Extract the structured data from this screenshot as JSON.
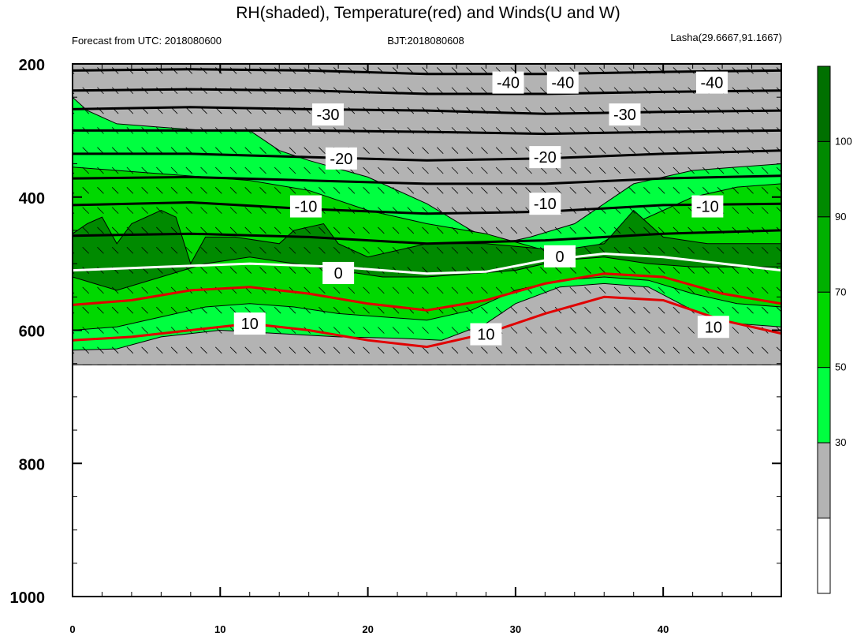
{
  "chart_data": {
    "type": "contour",
    "title": "RH(shaded), Temperature(red) and Winds(U and W)",
    "subtitle_left": "Forecast from UTC: 2018080600",
    "subtitle_center": "BJT:2018080608",
    "subtitle_right": "Lasha(29.6667,91.1667)",
    "xlim": [
      0,
      48
    ],
    "ylim": [
      200,
      1000
    ],
    "x_ticks": [
      "0",
      "10",
      "20",
      "30",
      "40"
    ],
    "y_ticks": [
      "200",
      "400",
      "600",
      "800",
      "1000"
    ],
    "colorbar": {
      "levels": [
        "30",
        "50",
        "70",
        "90",
        "100"
      ],
      "colors": [
        "#ffffff",
        "#b3b3b3",
        "#00ff40",
        "#00d800",
        "#00b000",
        "#008a00",
        "#007000"
      ]
    },
    "rh_bands": [
      {
        "range": "30-50",
        "color": "#b3b3b3",
        "top": [
          [
            0,
            200
          ],
          [
            2,
            200
          ],
          [
            4,
            200
          ],
          [
            8,
            200
          ],
          [
            12,
            200
          ],
          [
            16,
            200
          ],
          [
            20,
            200
          ],
          [
            24,
            200
          ],
          [
            28,
            200
          ],
          [
            32,
            200
          ],
          [
            36,
            200
          ],
          [
            40,
            200
          ],
          [
            44,
            200
          ],
          [
            48,
            200
          ]
        ],
        "bottom": [
          [
            0,
            652
          ],
          [
            4,
            652
          ],
          [
            8,
            652
          ],
          [
            12,
            652
          ],
          [
            16,
            652
          ],
          [
            20,
            652
          ],
          [
            24,
            652
          ],
          [
            28,
            652
          ],
          [
            32,
            652
          ],
          [
            36,
            652
          ],
          [
            40,
            652
          ],
          [
            44,
            652
          ],
          [
            48,
            652
          ]
        ]
      },
      {
        "range": "50-70",
        "color": "#00ff40",
        "top": [
          [
            0,
            250
          ],
          [
            1,
            270
          ],
          [
            3,
            290
          ],
          [
            6,
            295
          ],
          [
            9,
            300
          ],
          [
            12,
            300
          ],
          [
            14,
            330
          ],
          [
            16,
            345
          ],
          [
            20,
            370
          ],
          [
            24,
            410
          ],
          [
            27,
            450
          ],
          [
            29,
            470
          ],
          [
            31,
            460
          ],
          [
            34,
            440
          ],
          [
            38,
            380
          ],
          [
            42,
            360
          ],
          [
            45,
            355
          ],
          [
            48,
            350
          ]
        ],
        "bottom": [
          [
            0,
            630
          ],
          [
            3,
            628
          ],
          [
            6,
            610
          ],
          [
            10,
            600
          ],
          [
            14,
            605
          ],
          [
            18,
            610
          ],
          [
            22,
            612
          ],
          [
            25,
            615
          ],
          [
            28,
            590
          ],
          [
            30,
            560
          ],
          [
            33,
            535
          ],
          [
            36,
            530
          ],
          [
            39,
            535
          ],
          [
            42,
            570
          ],
          [
            45,
            590
          ],
          [
            48,
            595
          ]
        ]
      },
      {
        "range": "70-90",
        "color": "#00d800",
        "top": [
          [
            0,
            355
          ],
          [
            3,
            360
          ],
          [
            6,
            365
          ],
          [
            9,
            370
          ],
          [
            12,
            375
          ],
          [
            16,
            390
          ],
          [
            20,
            420
          ],
          [
            24,
            440
          ],
          [
            28,
            455
          ],
          [
            32,
            480
          ],
          [
            35,
            480
          ],
          [
            38,
            440
          ],
          [
            42,
            400
          ],
          [
            45,
            385
          ],
          [
            48,
            380
          ]
        ],
        "bottom": [
          [
            0,
            600
          ],
          [
            3,
            595
          ],
          [
            6,
            580
          ],
          [
            9,
            565
          ],
          [
            12,
            560
          ],
          [
            15,
            565
          ],
          [
            18,
            575
          ],
          [
            21,
            580
          ],
          [
            24,
            585
          ],
          [
            27,
            570
          ],
          [
            30,
            540
          ],
          [
            33,
            525
          ],
          [
            36,
            520
          ],
          [
            39,
            525
          ],
          [
            42,
            545
          ],
          [
            45,
            560
          ],
          [
            48,
            565
          ]
        ]
      },
      {
        "range": "90-100",
        "color": "#008a00",
        "top": [
          [
            0,
            455
          ],
          [
            1,
            440
          ],
          [
            2,
            430
          ],
          [
            3,
            470
          ],
          [
            4,
            440
          ],
          [
            6,
            420
          ],
          [
            7,
            430
          ],
          [
            8,
            500
          ],
          [
            9,
            460
          ],
          [
            11,
            460
          ],
          [
            14,
            470
          ],
          [
            15,
            450
          ],
          [
            17,
            440
          ],
          [
            18,
            470
          ],
          [
            20,
            490
          ],
          [
            24,
            470
          ],
          [
            28,
            470
          ],
          [
            33,
            480
          ],
          [
            36,
            470
          ],
          [
            38,
            420
          ],
          [
            40,
            460
          ],
          [
            43,
            470
          ],
          [
            48,
            470
          ]
        ],
        "bottom": [
          [
            0,
            520
          ],
          [
            3,
            540
          ],
          [
            6,
            520
          ],
          [
            9,
            500
          ],
          [
            12,
            490
          ],
          [
            15,
            500
          ],
          [
            18,
            510
          ],
          [
            21,
            520
          ],
          [
            24,
            520
          ],
          [
            27,
            515
          ],
          [
            30,
            510
          ],
          [
            33,
            495
          ],
          [
            36,
            490
          ],
          [
            39,
            500
          ],
          [
            42,
            505
          ],
          [
            45,
            505
          ],
          [
            48,
            505
          ]
        ]
      }
    ],
    "temperature_contours": [
      {
        "label": "-40",
        "color": "#000000",
        "points": [
          [
            0,
            210
          ],
          [
            8,
            208
          ],
          [
            16,
            210
          ],
          [
            24,
            215
          ],
          [
            32,
            215
          ],
          [
            40,
            212
          ],
          [
            48,
            210
          ]
        ]
      },
      {
        "label": "-40",
        "color": "#000000",
        "points": [
          [
            0,
            240
          ],
          [
            8,
            238
          ],
          [
            16,
            240
          ],
          [
            24,
            245
          ],
          [
            32,
            245
          ],
          [
            40,
            242
          ],
          [
            48,
            240
          ]
        ]
      },
      {
        "label": "-30",
        "color": "#000000",
        "points": [
          [
            0,
            268
          ],
          [
            8,
            265
          ],
          [
            16,
            268
          ],
          [
            24,
            270
          ],
          [
            32,
            275
          ],
          [
            40,
            272
          ],
          [
            48,
            270
          ]
        ]
      },
      {
        "label": "-30",
        "color": "#000000",
        "points": [
          [
            0,
            300
          ],
          [
            8,
            300
          ],
          [
            16,
            300
          ],
          [
            24,
            302
          ],
          [
            32,
            305
          ],
          [
            40,
            302
          ],
          [
            48,
            300
          ]
        ]
      },
      {
        "label": "-20",
        "color": "#000000",
        "points": [
          [
            0,
            335
          ],
          [
            8,
            335
          ],
          [
            16,
            340
          ],
          [
            24,
            345
          ],
          [
            32,
            342
          ],
          [
            40,
            335
          ],
          [
            48,
            330
          ]
        ]
      },
      {
        "label": "-20",
        "color": "#000000",
        "points": [
          [
            0,
            372
          ],
          [
            8,
            370
          ],
          [
            16,
            375
          ],
          [
            24,
            380
          ],
          [
            32,
            380
          ],
          [
            40,
            372
          ],
          [
            48,
            368
          ]
        ]
      },
      {
        "label": "-10",
        "color": "#000000",
        "points": [
          [
            0,
            412
          ],
          [
            8,
            408
          ],
          [
            16,
            418
          ],
          [
            24,
            425
          ],
          [
            32,
            422
          ],
          [
            40,
            412
          ],
          [
            48,
            410
          ]
        ]
      },
      {
        "label": "-10",
        "color": "#000000",
        "points": [
          [
            0,
            458
          ],
          [
            8,
            455
          ],
          [
            16,
            460
          ],
          [
            24,
            470
          ],
          [
            32,
            465
          ],
          [
            40,
            455
          ],
          [
            48,
            450
          ]
        ]
      },
      {
        "label": "0",
        "color": "#ffffff",
        "points": [
          [
            0,
            510
          ],
          [
            6,
            505
          ],
          [
            12,
            500
          ],
          [
            18,
            505
          ],
          [
            24,
            515
          ],
          [
            28,
            512
          ],
          [
            32,
            495
          ],
          [
            36,
            485
          ],
          [
            40,
            490
          ],
          [
            44,
            500
          ],
          [
            48,
            510
          ]
        ]
      },
      {
        "label": "10",
        "color": "#e00000",
        "points": [
          [
            0,
            562
          ],
          [
            4,
            555
          ],
          [
            8,
            540
          ],
          [
            12,
            535
          ],
          [
            16,
            545
          ],
          [
            20,
            560
          ],
          [
            24,
            570
          ],
          [
            28,
            555
          ],
          [
            32,
            530
          ],
          [
            36,
            515
          ],
          [
            40,
            520
          ],
          [
            44,
            545
          ],
          [
            48,
            560
          ]
        ]
      },
      {
        "label": "10",
        "color": "#e00000",
        "points": [
          [
            0,
            615
          ],
          [
            4,
            610
          ],
          [
            8,
            600
          ],
          [
            12,
            590
          ],
          [
            16,
            600
          ],
          [
            20,
            615
          ],
          [
            24,
            625
          ],
          [
            28,
            605
          ],
          [
            32,
            575
          ],
          [
            36,
            550
          ],
          [
            40,
            555
          ],
          [
            44,
            585
          ],
          [
            48,
            605
          ]
        ]
      }
    ],
    "contour_labels": [
      {
        "text": "-40",
        "x": 29.5,
        "y": 228
      },
      {
        "text": "-40",
        "x": 33.2,
        "y": 228
      },
      {
        "text": "-40",
        "x": 43.3,
        "y": 228
      },
      {
        "text": "-30",
        "x": 17.3,
        "y": 276
      },
      {
        "text": "-30",
        "x": 37.4,
        "y": 276
      },
      {
        "text": "-20",
        "x": 18.2,
        "y": 342
      },
      {
        "text": "-20",
        "x": 32.0,
        "y": 340
      },
      {
        "text": "-10",
        "x": 15.8,
        "y": 414
      },
      {
        "text": "-10",
        "x": 32.0,
        "y": 410
      },
      {
        "text": "-10",
        "x": 43.0,
        "y": 414
      },
      {
        "text": "0",
        "x": 18.0,
        "y": 514
      },
      {
        "text": "0",
        "x": 33.0,
        "y": 489
      },
      {
        "text": "10",
        "x": 12.0,
        "y": 590
      },
      {
        "text": "10",
        "x": 28.0,
        "y": 606
      },
      {
        "text": "10",
        "x": 43.4,
        "y": 595
      }
    ]
  }
}
